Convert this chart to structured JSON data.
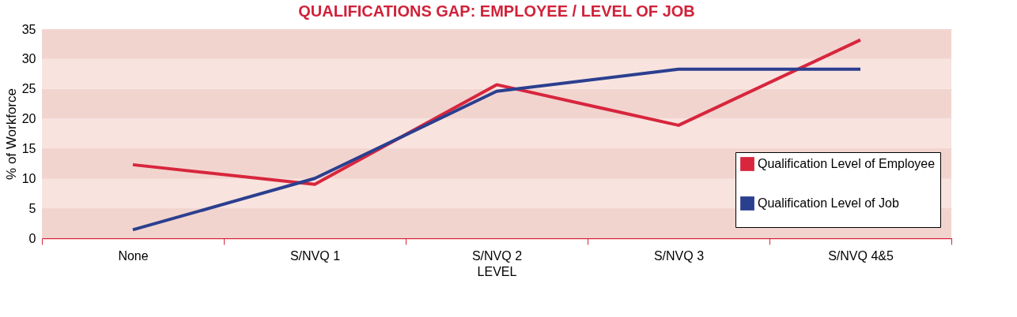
{
  "chart_data": {
    "type": "line",
    "title": "QUALIFICATIONS GAP: EMPLOYEE / LEVEL OF JOB",
    "xlabel": "LEVEL",
    "ylabel": "% of Workforce",
    "categories": [
      "None",
      "S/NVQ 1",
      "S/NVQ 2",
      "S/NVQ 3",
      "S/NVQ 4&5"
    ],
    "series": [
      {
        "name": "Qualification Level of Employee",
        "color": "#d7263d",
        "values": [
          12.3,
          9,
          25.7,
          18.9,
          33.2
        ]
      },
      {
        "name": "Qualification Level of Job",
        "color": "#2b3f8f",
        "values": [
          1.4,
          10,
          24.6,
          28.3,
          28.3
        ]
      }
    ],
    "ylim": [
      0,
      35
    ],
    "yticks": [
      0,
      5,
      10,
      15,
      20,
      25,
      30,
      35
    ],
    "grid": "y",
    "legend": "bottom right",
    "marker": "none",
    "line_style": "solid"
  }
}
